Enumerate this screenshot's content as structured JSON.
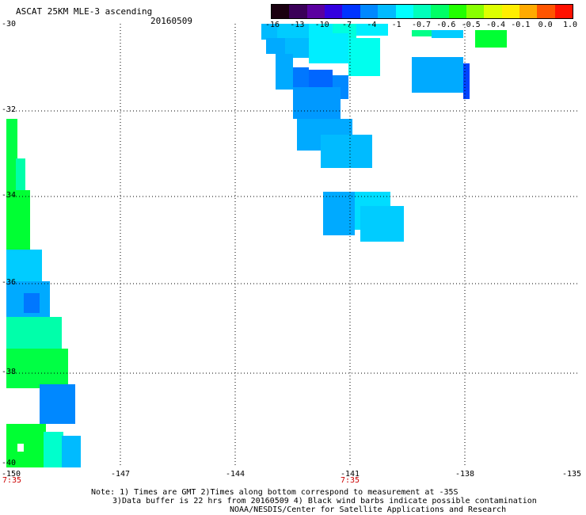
{
  "title": "ASCAT 25KM MLE-3 ascending",
  "date": "20160509",
  "colorbar": {
    "ticks": [
      "-16",
      "-13",
      "-10",
      "-7",
      "-4",
      "-1",
      "-0.7",
      "-0.6",
      "-0.5",
      "-0.4",
      "-0.1",
      "0.0",
      "1.0"
    ],
    "colors": [
      "#1a0010",
      "#3a0058",
      "#5a00a0",
      "#3300e0",
      "#0033ff",
      "#0088ff",
      "#00bbff",
      "#00ffff",
      "#00ffbb",
      "#00ff66",
      "#22ff00",
      "#88ff00",
      "#ddff00",
      "#ffee00",
      "#ffaa00",
      "#ff5500",
      "#ff1100"
    ]
  },
  "axes": {
    "lat_labels": [
      "-30",
      "-32",
      "-34",
      "-36",
      "-38",
      "-40"
    ],
    "lon_labels": [
      "-150",
      "-147",
      "-144",
      "-141",
      "-138",
      "-135"
    ],
    "time_labels": [
      "7:35",
      "7:35"
    ]
  },
  "swaths": {
    "east_cells": [
      [
        330,
        30,
        20,
        20,
        "#00bbff"
      ],
      [
        350,
        30,
        40,
        20,
        "#00ccff"
      ],
      [
        390,
        30,
        30,
        12,
        "#00eeff"
      ],
      [
        420,
        30,
        30,
        18,
        "#00ffdd"
      ],
      [
        450,
        30,
        40,
        15,
        "#00eeff"
      ],
      [
        520,
        38,
        25,
        8,
        "#00ff88"
      ],
      [
        545,
        38,
        40,
        10,
        "#00ccff"
      ],
      [
        600,
        38,
        40,
        22,
        "#00ff33"
      ],
      [
        336,
        48,
        25,
        20,
        "#00aaff"
      ],
      [
        360,
        48,
        30,
        25,
        "#00bbff"
      ],
      [
        390,
        42,
        50,
        38,
        "#00eeff"
      ],
      [
        440,
        48,
        40,
        48,
        "#00ffee"
      ],
      [
        348,
        68,
        22,
        45,
        "#00aaff"
      ],
      [
        370,
        85,
        20,
        25,
        "#0077ff"
      ],
      [
        390,
        88,
        30,
        25,
        "#0066ff"
      ],
      [
        420,
        95,
        20,
        30,
        "#0088ff"
      ],
      [
        370,
        110,
        60,
        40,
        "#0099ff"
      ],
      [
        375,
        150,
        70,
        40,
        "#00aaff"
      ],
      [
        405,
        170,
        65,
        42,
        "#00bbff"
      ],
      [
        520,
        72,
        65,
        45,
        "#00aaff"
      ],
      [
        585,
        80,
        8,
        45,
        "#0044ff"
      ],
      [
        408,
        242,
        40,
        55,
        "#00aaff"
      ],
      [
        448,
        242,
        45,
        48,
        "#00ddff"
      ],
      [
        455,
        260,
        55,
        45,
        "#00ccff"
      ]
    ],
    "west_cells": [
      [
        8,
        150,
        14,
        95,
        "#00ff44"
      ],
      [
        20,
        200,
        12,
        60,
        "#00ffaa"
      ],
      [
        8,
        240,
        30,
        75,
        "#00ff33"
      ],
      [
        8,
        315,
        45,
        40,
        "#00ccff"
      ],
      [
        8,
        355,
        55,
        45,
        "#00aaff"
      ],
      [
        30,
        370,
        20,
        25,
        "#0077ff"
      ],
      [
        8,
        400,
        70,
        45,
        "#00ffaa"
      ],
      [
        8,
        440,
        78,
        50,
        "#00ff44"
      ],
      [
        50,
        485,
        45,
        50,
        "#0088ff"
      ],
      [
        8,
        535,
        50,
        55,
        "#00ff33"
      ],
      [
        55,
        545,
        25,
        45,
        "#00ffcc"
      ],
      [
        78,
        550,
        24,
        40,
        "#00bbff"
      ]
    ]
  },
  "notes": [
    "Note: 1) Times are GMT 2)Times along bottom correspond to measurement at -35S",
    "3)Data buffer is 22 hrs from 20160509 4) Black wind barbs indicate possible contamination",
    "NOAA/NESDIS/Center for Satellite Applications and Research"
  ]
}
